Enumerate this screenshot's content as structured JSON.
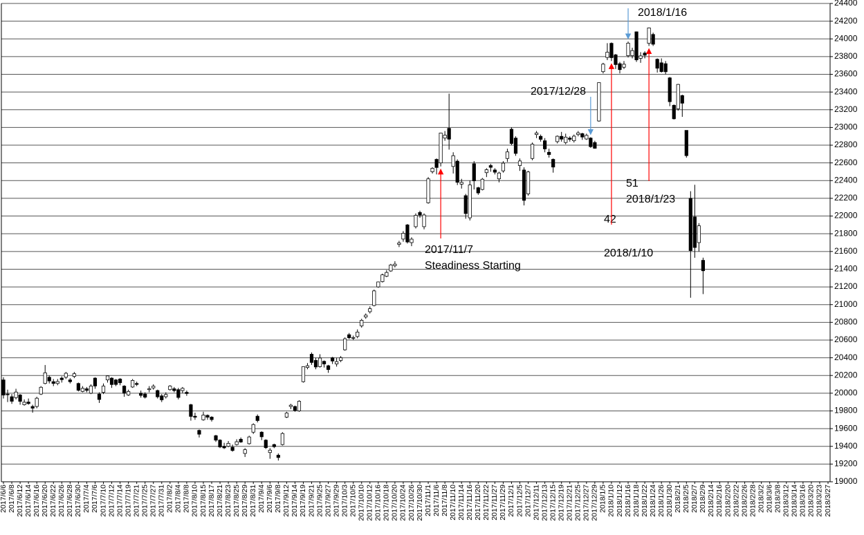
{
  "chart_data": {
    "type": "candlestick",
    "up_color": "#ffffff",
    "down_color": "#000000",
    "grid": true,
    "ylim": [
      19000,
      24400
    ],
    "yticks": [
      19000,
      19200,
      19400,
      19600,
      19800,
      20000,
      20200,
      20400,
      20600,
      20800,
      21000,
      21200,
      21400,
      21600,
      21800,
      22000,
      22200,
      22400,
      22600,
      22800,
      23000,
      23200,
      23400,
      23600,
      23800,
      24000,
      24200,
      24400
    ],
    "categories": [
      "2017/6/6",
      null,
      "2017/6/8",
      null,
      "2017/6/12",
      null,
      "2017/6/14",
      null,
      "2017/6/16",
      null,
      "2017/6/20",
      null,
      "2017/6/22",
      null,
      "2017/6/26",
      null,
      "2017/6/28",
      null,
      "2017/6/30",
      null,
      "2017/7/4",
      null,
      "2017/7/6",
      null,
      "2017/7/10",
      null,
      "2017/7/12",
      null,
      "2017/7/14",
      null,
      "2017/7/19",
      null,
      "2017/7/21",
      null,
      "2017/7/25",
      null,
      "2017/7/27",
      null,
      "2017/7/31",
      null,
      "2017/8/2",
      null,
      "2017/8/4",
      null,
      "2017/8/8",
      null,
      "2017/8/10",
      null,
      "2017/8/15",
      null,
      "2017/8/17",
      null,
      "2017/8/21",
      null,
      "2017/8/23",
      null,
      "2017/8/25",
      null,
      "2017/8/29",
      null,
      "2017/8/31",
      null,
      "2017/9/4",
      null,
      "2017/9/6",
      null,
      "2017/9/8",
      null,
      "2017/9/12",
      null,
      "2017/9/14",
      null,
      "2017/9/19",
      null,
      "2017/9/21",
      null,
      "2017/9/25",
      null,
      "2017/9/27",
      null,
      "2017/9/29",
      null,
      "2017/10/3",
      null,
      "2017/10/5",
      null,
      "2017/10/10",
      null,
      "2017/10/12",
      null,
      "2017/10/16",
      null,
      "2017/10/18",
      null,
      "2017/10/20",
      null,
      "2017/10/24",
      null,
      "2017/10/26",
      null,
      "2017/10/30",
      null,
      "2017/11/1",
      null,
      "2017/11/6",
      null,
      "2017/11/8",
      null,
      "2017/11/10",
      null,
      "2017/11/14",
      null,
      "2017/11/16",
      null,
      "2017/11/20",
      null,
      "2017/11/22",
      null,
      "2017/11/27",
      null,
      "2017/11/29",
      null,
      "2017/12/1",
      null,
      "2017/12/5",
      null,
      "2017/12/7",
      null,
      "2017/12/11",
      null,
      "2017/12/13",
      null,
      "2017/12/15",
      null,
      "2017/12/19",
      null,
      "2017/12/21",
      null,
      "2017/12/25",
      null,
      "2017/12/27",
      null,
      "2017/12/29",
      null,
      "2018/1/5",
      null,
      "2018/1/10",
      null,
      "2018/1/12",
      null,
      "2018/1/16",
      null,
      "2018/1/18",
      null,
      "2018/1/22",
      null,
      "2018/1/24",
      null,
      "2018/1/26",
      null,
      "2018/1/30",
      null,
      "2018/2/1",
      null,
      "2018/2/5",
      null,
      "2018/2/7",
      null,
      "2018/2/9",
      null,
      "2018/2/14",
      null,
      "2018/2/16",
      null,
      "2018/2/20",
      null,
      "2018/2/22",
      null,
      "2018/2/26",
      null,
      "2018/2/28",
      null,
      "2018/3/2",
      null,
      "2018/3/6",
      null,
      "2018/3/8",
      null,
      "2018/3/12",
      null,
      "2018/3/14",
      null,
      "2018/3/16",
      null,
      "2018/3/20",
      null,
      "2018/3/23",
      null,
      "2018/3/27"
    ],
    "ohlc": [
      [
        20150,
        20180,
        19940,
        19979
      ],
      [
        19990,
        20040,
        19900,
        19984
      ],
      [
        19960,
        19990,
        19880,
        19909
      ],
      [
        19950,
        20050,
        19930,
        20013
      ],
      [
        19980,
        19990,
        19870,
        19908
      ],
      [
        19870,
        19930,
        19860,
        19898
      ],
      [
        19900,
        19940,
        19870,
        19883
      ],
      [
        19850,
        19870,
        19780,
        19831
      ],
      [
        19850,
        19960,
        19830,
        19943
      ],
      [
        19990,
        20080,
        19980,
        20067
      ],
      [
        20110,
        20318,
        20100,
        20230
      ],
      [
        20180,
        20200,
        20110,
        20138
      ],
      [
        20130,
        20160,
        20080,
        20110
      ],
      [
        20110,
        20160,
        20090,
        20132
      ],
      [
        20170,
        20190,
        20120,
        20153
      ],
      [
        20180,
        20240,
        20160,
        20225
      ],
      [
        20150,
        20170,
        20110,
        20130
      ],
      [
        20190,
        20240,
        20170,
        20220
      ],
      [
        20110,
        20120,
        20020,
        20033
      ],
      [
        20020,
        20080,
        20010,
        20055
      ],
      [
        20050,
        20070,
        20010,
        20032
      ],
      [
        20000,
        20100,
        19990,
        20081
      ],
      [
        20170,
        20180,
        20050,
        20081
      ],
      [
        19990,
        20010,
        19890,
        19929
      ],
      [
        20010,
        20110,
        19990,
        20080
      ],
      [
        20150,
        20200,
        20120,
        20195
      ],
      [
        20170,
        20180,
        20060,
        20098
      ],
      [
        20150,
        20160,
        20080,
        20099
      ],
      [
        20160,
        20170,
        20090,
        20118
      ],
      [
        20080,
        20090,
        19960,
        20000
      ],
      [
        19980,
        20040,
        19970,
        20020
      ],
      [
        20070,
        20160,
        20060,
        20144
      ],
      [
        20110,
        20130,
        20080,
        20099
      ],
      [
        20000,
        20030,
        19950,
        19975
      ],
      [
        19990,
        20010,
        19940,
        19955
      ],
      [
        20040,
        20080,
        20010,
        20050
      ],
      [
        20060,
        20100,
        20040,
        20079
      ],
      [
        20030,
        20040,
        19940,
        19959
      ],
      [
        19970,
        19990,
        19900,
        19925
      ],
      [
        19960,
        20010,
        19940,
        19985
      ],
      [
        20040,
        20090,
        20030,
        20080
      ],
      [
        20050,
        20070,
        20010,
        20029
      ],
      [
        20040,
        20060,
        19930,
        19952
      ],
      [
        20030,
        20070,
        20000,
        20055
      ],
      [
        20010,
        20030,
        19970,
        19996
      ],
      [
        19870,
        19880,
        19690,
        19738
      ],
      [
        19740,
        19780,
        19700,
        19729
      ],
      [
        19580,
        19590,
        19500,
        19537
      ],
      [
        19700,
        19790,
        19690,
        19753
      ],
      [
        19750,
        19760,
        19700,
        19729
      ],
      [
        19730,
        19740,
        19680,
        19702
      ],
      [
        19520,
        19530,
        19450,
        19470
      ],
      [
        19470,
        19480,
        19380,
        19393
      ],
      [
        19400,
        19440,
        19370,
        19383
      ],
      [
        19400,
        19460,
        19390,
        19434
      ],
      [
        19390,
        19420,
        19340,
        19353
      ],
      [
        19420,
        19480,
        19410,
        19452
      ],
      [
        19480,
        19500,
        19440,
        19449
      ],
      [
        19320,
        19380,
        19280,
        19362
      ],
      [
        19430,
        19520,
        19420,
        19506
      ],
      [
        19560,
        19660,
        19540,
        19646
      ],
      [
        19740,
        19760,
        19670,
        19691
      ],
      [
        19560,
        19570,
        19470,
        19508
      ],
      [
        19470,
        19480,
        19370,
        19385
      ],
      [
        19330,
        19380,
        19260,
        19357
      ],
      [
        19420,
        19430,
        19380,
        19396
      ],
      [
        19300,
        19320,
        19240,
        19274
      ],
      [
        19420,
        19560,
        19410,
        19545
      ],
      [
        19730,
        19790,
        19720,
        19776
      ],
      [
        19850,
        19880,
        19820,
        19865
      ],
      [
        19850,
        19860,
        19790,
        19807
      ],
      [
        19800,
        19920,
        19790,
        19909
      ],
      [
        20130,
        20300,
        20120,
        20299
      ],
      [
        20290,
        20340,
        20270,
        20310
      ],
      [
        20440,
        20460,
        20320,
        20347
      ],
      [
        20370,
        20400,
        20270,
        20296
      ],
      [
        20300,
        20440,
        20290,
        20397
      ],
      [
        20360,
        20370,
        20290,
        20330
      ],
      [
        20310,
        20320,
        20230,
        20267
      ],
      [
        20400,
        20410,
        20330,
        20363
      ],
      [
        20330,
        20400,
        20300,
        20356
      ],
      [
        20370,
        20420,
        20350,
        20400
      ],
      [
        20490,
        20630,
        20480,
        20614
      ],
      [
        20660,
        20680,
        20610,
        20626
      ],
      [
        20620,
        20650,
        20600,
        20628
      ],
      [
        20640,
        20720,
        20620,
        20690
      ],
      [
        20760,
        20840,
        20740,
        20823
      ],
      [
        20860,
        20900,
        20840,
        20881
      ],
      [
        20920,
        20980,
        20900,
        20954
      ],
      [
        20990,
        21170,
        20980,
        21155
      ],
      [
        21200,
        21260,
        21190,
        21256
      ],
      [
        21260,
        21350,
        21250,
        21336
      ],
      [
        21320,
        21390,
        21310,
        21363
      ],
      [
        21380,
        21460,
        21370,
        21448
      ],
      [
        21440,
        21490,
        21420,
        21457
      ],
      [
        21680,
        21720,
        21650,
        21697
      ],
      [
        21740,
        21830,
        21710,
        21805
      ],
      [
        21900,
        21910,
        21690,
        21707
      ],
      [
        21700,
        21760,
        21660,
        21739
      ],
      [
        21880,
        22030,
        21860,
        22008
      ],
      [
        22040,
        22060,
        21980,
        22011
      ],
      [
        21880,
        22030,
        21850,
        22012
      ],
      [
        22150,
        22440,
        22140,
        22420
      ],
      [
        22500,
        22550,
        22480,
        22539
      ],
      [
        22640,
        22650,
        22470,
        22548
      ],
      [
        22600,
        22940,
        22560,
        22937
      ],
      [
        22880,
        22960,
        22850,
        22913
      ],
      [
        22990,
        23382,
        22750,
        22868
      ],
      [
        22560,
        22720,
        22480,
        22681
      ],
      [
        22620,
        22640,
        22350,
        22381
      ],
      [
        22360,
        22420,
        22310,
        22380
      ],
      [
        22230,
        22250,
        21970,
        22028
      ],
      [
        21980,
        22400,
        21950,
        22351
      ],
      [
        22590,
        22620,
        22300,
        22397
      ],
      [
        22320,
        22330,
        22240,
        22261
      ],
      [
        22300,
        22430,
        22290,
        22416
      ],
      [
        22490,
        22540,
        22440,
        22523
      ],
      [
        22570,
        22590,
        22500,
        22550
      ],
      [
        22520,
        22540,
        22470,
        22495
      ],
      [
        22420,
        22500,
        22380,
        22486
      ],
      [
        22510,
        22620,
        22490,
        22597
      ],
      [
        22650,
        22760,
        22610,
        22724
      ],
      [
        22980,
        23000,
        22800,
        22819
      ],
      [
        22880,
        22900,
        22680,
        22707
      ],
      [
        22570,
        22650,
        22510,
        22622
      ],
      [
        22520,
        22550,
        22120,
        22177
      ],
      [
        22250,
        22510,
        22230,
        22498
      ],
      [
        22650,
        22830,
        22630,
        22811
      ],
      [
        22920,
        22960,
        22880,
        22938
      ],
      [
        22900,
        22920,
        22840,
        22866
      ],
      [
        22850,
        22880,
        22720,
        22758
      ],
      [
        22720,
        22760,
        22660,
        22694
      ],
      [
        22640,
        22650,
        22490,
        22553
      ],
      [
        22840,
        22910,
        22820,
        22901
      ],
      [
        22900,
        22950,
        22840,
        22868
      ],
      [
        22830,
        22930,
        22810,
        22891
      ],
      [
        22880,
        22900,
        22840,
        22866
      ],
      [
        22850,
        22920,
        22830,
        22902
      ],
      [
        22920,
        22960,
        22900,
        22939
      ],
      [
        22930,
        22940,
        22860,
        22892
      ],
      [
        22870,
        22930,
        22860,
        22911
      ],
      [
        22880,
        22890,
        22770,
        22783
      ],
      [
        22830,
        22850,
        22760,
        22765
      ],
      [
        23073,
        23506,
        23065,
        23506
      ],
      [
        23630,
        23730,
        23610,
        23715
      ],
      [
        23790,
        23952,
        23760,
        23850
      ],
      [
        23950,
        23960,
        23750,
        23788
      ],
      [
        23820,
        23830,
        23660,
        23710
      ],
      [
        23720,
        23740,
        23610,
        23653
      ],
      [
        23680,
        23750,
        23660,
        23714
      ],
      [
        23810,
        23970,
        23790,
        23952
      ],
      [
        23810,
        23900,
        23780,
        23868
      ],
      [
        24080,
        24084,
        23740,
        23763
      ],
      [
        23780,
        23850,
        23730,
        23808
      ],
      [
        23840,
        23860,
        23780,
        23816
      ],
      [
        23950,
        24129,
        23920,
        24124
      ],
      [
        24050,
        24070,
        23920,
        23940
      ],
      [
        23770,
        23780,
        23620,
        23669
      ],
      [
        23730,
        23780,
        23620,
        23631
      ],
      [
        23720,
        23750,
        23600,
        23629
      ],
      [
        23560,
        23570,
        23240,
        23291
      ],
      [
        23250,
        23260,
        23090,
        23098
      ],
      [
        23210,
        23492,
        23190,
        23486
      ],
      [
        23360,
        23370,
        23120,
        23274
      ],
      [
        22967,
        22967,
        22659,
        22682
      ],
      [
        22200,
        22280,
        21078,
        21610
      ],
      [
        21990,
        22353,
        21529,
        21645
      ],
      [
        21700,
        21920,
        21600,
        21890
      ],
      [
        21500,
        21530,
        21119,
        21382
      ],
      null,
      null,
      null,
      null,
      null,
      null,
      null,
      null,
      null,
      null,
      null,
      null,
      null,
      null,
      null,
      null,
      null,
      null,
      null,
      null,
      null,
      null,
      null,
      null,
      null,
      null,
      null,
      null,
      null,
      null
    ],
    "annotations": [
      {
        "lines": [
          "2017/11/7",
          "Steadiness Starting"
        ],
        "color": "#ff0000"
      },
      {
        "lines": [
          "42",
          "2018/1/10"
        ],
        "color": "#ff0000"
      },
      {
        "lines": [
          "51",
          "2018/1/23"
        ],
        "color": "#ff0000"
      },
      {
        "lines": [
          "2017/12/28"
        ],
        "color": "#5b9bd5"
      },
      {
        "lines": [
          "2018/1/16"
        ],
        "color": "#5b9bd5"
      }
    ]
  }
}
